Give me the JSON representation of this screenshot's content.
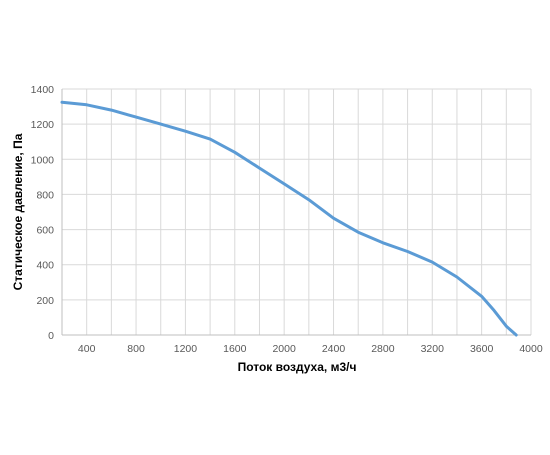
{
  "chart_data": {
    "type": "line",
    "title": "",
    "xlabel": "Поток воздуха, м3/ч",
    "ylabel": "Статическое давление, Па",
    "xlim": [
      200,
      4000
    ],
    "ylim": [
      0,
      1400
    ],
    "x_ticks": [
      400,
      800,
      1200,
      1600,
      2000,
      2400,
      2800,
      3200,
      3600,
      4000
    ],
    "x_tick_labels": [
      "400",
      "800",
      "1200",
      "1600",
      "2000",
      "2400",
      "2800",
      "3200",
      "3600",
      "4000"
    ],
    "y_ticks": [
      0,
      200,
      400,
      600,
      800,
      1000,
      1200,
      1400
    ],
    "y_tick_labels": [
      "0",
      "200",
      "400",
      "600",
      "800",
      "1000",
      "1200",
      "1400"
    ],
    "x_gridlines": [
      400,
      600,
      800,
      1000,
      1200,
      1400,
      1600,
      1800,
      2000,
      2200,
      2400,
      2600,
      2800,
      3000,
      3200,
      3400,
      3600,
      3800,
      4000
    ],
    "grid": true,
    "legend": "none",
    "series": [
      {
        "color": "#5B9BD5",
        "x": [
          200,
          400,
          600,
          800,
          1000,
          1200,
          1400,
          1600,
          1800,
          2000,
          2200,
          2400,
          2600,
          2800,
          3000,
          3200,
          3400,
          3600,
          3700,
          3800,
          3880
        ],
        "y": [
          1325,
          1310,
          1280,
          1240,
          1200,
          1160,
          1115,
          1040,
          950,
          860,
          770,
          665,
          585,
          525,
          475,
          415,
          330,
          220,
          140,
          50,
          0
        ]
      }
    ]
  },
  "colors": {
    "grid": "#D9D9D9",
    "axis": "#BFBFBF",
    "series": "#5B9BD5"
  }
}
